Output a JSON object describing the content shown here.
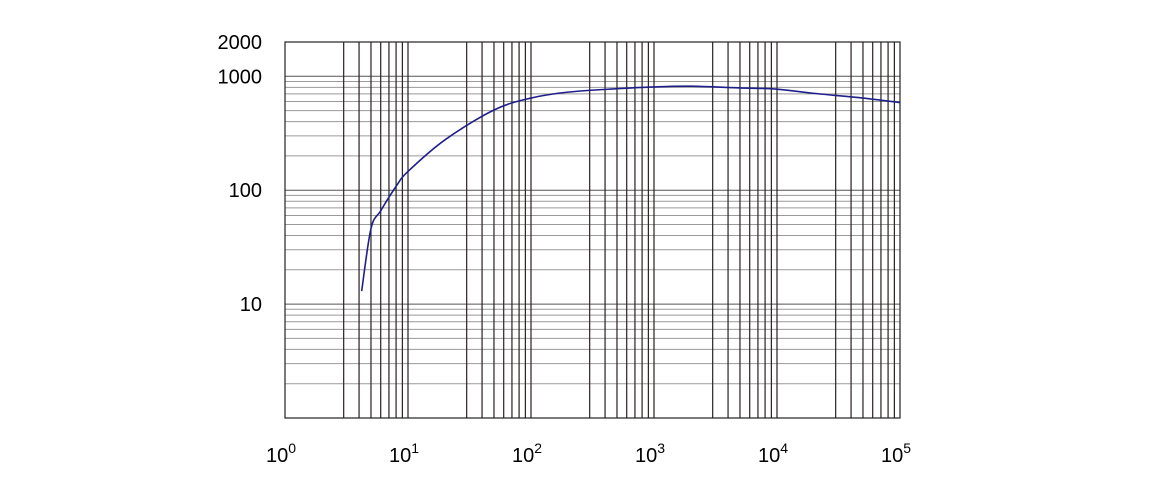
{
  "chart_data": {
    "type": "line",
    "title": "",
    "xlabel": "",
    "ylabel": "",
    "x_scale": "log",
    "y_scale": "log",
    "xlim": [
      1,
      100000
    ],
    "ylim": [
      1,
      2000
    ],
    "grid": true,
    "x_tick_labels": [
      {
        "base": "10",
        "exp": "0",
        "value": 1
      },
      {
        "base": "10",
        "exp": "1",
        "value": 10
      },
      {
        "base": "10",
        "exp": "2",
        "value": 100
      },
      {
        "base": "10",
        "exp": "3",
        "value": 1000
      },
      {
        "base": "10",
        "exp": "4",
        "value": 10000
      },
      {
        "base": "10",
        "exp": "5",
        "value": 100000
      }
    ],
    "y_tick_labels": [
      {
        "label": "2000",
        "value": 2000
      },
      {
        "label": "1000",
        "value": 1000
      },
      {
        "label": "100",
        "value": 100
      },
      {
        "label": "10",
        "value": 10
      }
    ],
    "series": [
      {
        "color": "#1f1f8a",
        "x": [
          4.2,
          5,
          6,
          8,
          10,
          20,
          50,
          100,
          200,
          500,
          1000,
          2000,
          5000,
          10000,
          20000,
          50000,
          100000
        ],
        "y": [
          13,
          46,
          66,
          108,
          146,
          277,
          506,
          644,
          726,
          778,
          807,
          818,
          790,
          771,
          708,
          644,
          588
        ]
      }
    ]
  }
}
